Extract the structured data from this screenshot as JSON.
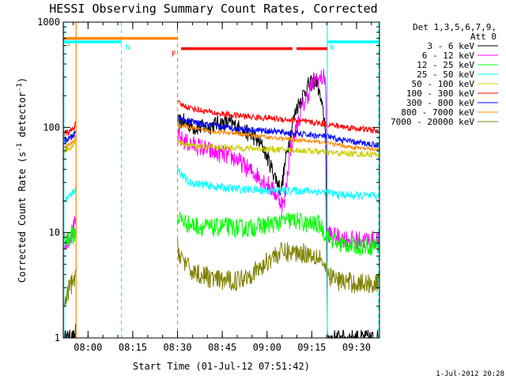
{
  "chart_data": {
    "type": "line",
    "title": "HESSI Observing Summary Count Rates, Corrected",
    "xlabel": "Start Time (01-Jul-12 07:51:42)",
    "ylabel": "Corrected Count Rate (s⁻¹ detector⁻¹)",
    "ylabel_parts": {
      "main": "Corrected Count Rate (s",
      "exp1": "-1",
      "mid": " detector",
      "exp2": "-1",
      "end": ")"
    },
    "yscale": "log",
    "ylim": [
      1,
      1000
    ],
    "xlim_minutes": [
      0,
      106
    ],
    "x_ticks": [
      {
        "label": "08:00",
        "minute": 8.3
      },
      {
        "label": "08:15",
        "minute": 23.3
      },
      {
        "label": "08:30",
        "minute": 38.3
      },
      {
        "label": "08:45",
        "minute": 53.3
      },
      {
        "label": "09:00",
        "minute": 68.3
      },
      {
        "label": "09:15",
        "minute": 83.3
      },
      {
        "label": "09:30",
        "minute": 98.3
      }
    ],
    "y_ticks": [
      {
        "label": "1",
        "value": 1
      },
      {
        "label": "10",
        "value": 10
      },
      {
        "label": "100",
        "value": 100
      },
      {
        "label": "1000",
        "value": 1000
      }
    ],
    "legend_header": [
      "Det 1,3,5,6,7,9,",
      "Att 0"
    ],
    "legend_position": "right",
    "flags": [
      {
        "label": "S",
        "color": "#ff8800",
        "y": 700,
        "start": 0,
        "end": 38.3
      },
      {
        "label": "N",
        "color": "#00ffff",
        "y": 650,
        "start": 0,
        "end": 19.5
      },
      {
        "label": "N",
        "color": "#00ffff",
        "y": 650,
        "start": 88.5,
        "end": 106
      },
      {
        "label": "F",
        "color": "#ff0000",
        "y": 560,
        "start": 39.5,
        "end": 88.5
      }
    ],
    "vlines": [
      {
        "minute": 0.2,
        "color": "#00ffff",
        "style": "solid"
      },
      {
        "minute": 4.3,
        "color": "#ff8800",
        "style": "solid"
      },
      {
        "minute": 19.5,
        "color": "#00ffff",
        "style": "dashed"
      },
      {
        "minute": 38.3,
        "color": "#ff8800",
        "style": "dashed"
      },
      {
        "minute": 88.5,
        "color": "#00ffff",
        "style": "solid"
      },
      {
        "minute": 106,
        "color": "#00ffff",
        "style": "dashed"
      }
    ],
    "data_gaps": [
      [
        4.3,
        38.3
      ]
    ],
    "series": [
      {
        "name": "3 - 6 keV",
        "color": "#000000",
        "noise": 0.08,
        "pre": [
          [
            0.5,
            1
          ],
          [
            3.6,
            1
          ],
          [
            4.2,
            1.2
          ]
        ],
        "points": [
          [
            38.3,
            110
          ],
          [
            40,
            115
          ],
          [
            44,
            100
          ],
          [
            48,
            100
          ],
          [
            52,
            110
          ],
          [
            56,
            110
          ],
          [
            60,
            95
          ],
          [
            64,
            80
          ],
          [
            67,
            65
          ],
          [
            70,
            40
          ],
          [
            73,
            25
          ],
          [
            75,
            60
          ],
          [
            78,
            150
          ],
          [
            82,
            250
          ],
          [
            85,
            280
          ],
          [
            88,
            100
          ],
          [
            88.5,
            1
          ],
          [
            106,
            1
          ]
        ]
      },
      {
        "name": "6 - 12 keV",
        "color": "#ff00ff",
        "noise": 0.09,
        "pre": [
          [
            0.5,
            8
          ],
          [
            2,
            9
          ],
          [
            3.6,
            11
          ],
          [
            4.2,
            13
          ]
        ],
        "points": [
          [
            38.3,
            80
          ],
          [
            42,
            70
          ],
          [
            46,
            65
          ],
          [
            50,
            58
          ],
          [
            54,
            55
          ],
          [
            58,
            50
          ],
          [
            62,
            40
          ],
          [
            65,
            35
          ],
          [
            68,
            30
          ],
          [
            71,
            24
          ],
          [
            74,
            18
          ],
          [
            76,
            60
          ],
          [
            80,
            150
          ],
          [
            84,
            280
          ],
          [
            88,
            300
          ],
          [
            88.5,
            10
          ],
          [
            92,
            9
          ],
          [
            98,
            8.5
          ],
          [
            106,
            8.5
          ]
        ]
      },
      {
        "name": "12 - 25 keV",
        "color": "#00ff00",
        "noise": 0.09,
        "pre": [
          [
            0.5,
            8
          ],
          [
            2,
            9
          ],
          [
            3.6,
            9.5
          ],
          [
            4.2,
            10
          ]
        ],
        "points": [
          [
            38.3,
            14
          ],
          [
            42,
            12
          ],
          [
            46,
            11.5
          ],
          [
            50,
            11
          ],
          [
            54,
            11.5
          ],
          [
            58,
            11
          ],
          [
            62,
            11
          ],
          [
            66,
            11.5
          ],
          [
            70,
            12
          ],
          [
            74,
            13
          ],
          [
            78,
            13
          ],
          [
            82,
            12
          ],
          [
            86,
            12
          ],
          [
            88.5,
            9
          ],
          [
            92,
            8
          ],
          [
            98,
            7.5
          ],
          [
            106,
            7.5
          ]
        ]
      },
      {
        "name": "25 - 50 keV",
        "color": "#00ffff",
        "noise": 0.04,
        "pre": [
          [
            0.5,
            20
          ],
          [
            2,
            22
          ],
          [
            3.6,
            25
          ],
          [
            4.2,
            27
          ]
        ],
        "points": [
          [
            38.3,
            40
          ],
          [
            42,
            30
          ],
          [
            46,
            29
          ],
          [
            52,
            27
          ],
          [
            58,
            26
          ],
          [
            64,
            25.5
          ],
          [
            70,
            25
          ],
          [
            76,
            25
          ],
          [
            82,
            25
          ],
          [
            88,
            24
          ],
          [
            92,
            23
          ],
          [
            98,
            22.5
          ],
          [
            106,
            22
          ]
        ]
      },
      {
        "name": "50 - 100 keV",
        "color": "#cccc00",
        "noise": 0.03,
        "pre": [
          [
            0.5,
            60
          ],
          [
            2,
            63
          ],
          [
            3.6,
            70
          ],
          [
            4.2,
            75
          ]
        ],
        "points": [
          [
            38.3,
            75
          ],
          [
            42,
            68
          ],
          [
            46,
            66
          ],
          [
            52,
            65
          ],
          [
            58,
            64
          ],
          [
            64,
            63
          ],
          [
            70,
            62
          ],
          [
            76,
            61
          ],
          [
            82,
            60
          ],
          [
            88,
            58
          ],
          [
            92,
            57
          ],
          [
            98,
            56
          ],
          [
            106,
            55
          ]
        ]
      },
      {
        "name": "100 - 300 keV",
        "color": "#ff0000",
        "noise": 0.03,
        "pre": [
          [
            0.5,
            88
          ],
          [
            2,
            90
          ],
          [
            3.6,
            100
          ],
          [
            4.2,
            110
          ]
        ],
        "points": [
          [
            38.3,
            170
          ],
          [
            42,
            155
          ],
          [
            46,
            145
          ],
          [
            52,
            135
          ],
          [
            58,
            130
          ],
          [
            64,
            125
          ],
          [
            70,
            122
          ],
          [
            76,
            118
          ],
          [
            82,
            112
          ],
          [
            88,
            108
          ],
          [
            92,
            103
          ],
          [
            98,
            98
          ],
          [
            106,
            92
          ]
        ]
      },
      {
        "name": "300 - 800 keV",
        "color": "#0000ff",
        "noise": 0.03,
        "pre": [
          [
            0.5,
            75
          ],
          [
            2,
            78
          ],
          [
            3.6,
            85
          ],
          [
            4.2,
            92
          ]
        ],
        "points": [
          [
            38.3,
            125
          ],
          [
            42,
            115
          ],
          [
            46,
            108
          ],
          [
            52,
            102
          ],
          [
            58,
            98
          ],
          [
            64,
            95
          ],
          [
            70,
            92
          ],
          [
            76,
            88
          ],
          [
            82,
            85
          ],
          [
            88,
            82
          ],
          [
            92,
            77
          ],
          [
            98,
            72
          ],
          [
            106,
            68
          ]
        ]
      },
      {
        "name": "800 - 7000 keV",
        "color": "#ff8800",
        "noise": 0.02,
        "pre": [
          [
            0.5,
            65
          ],
          [
            2,
            68
          ],
          [
            3.6,
            75
          ],
          [
            4.2,
            82
          ]
        ],
        "points": [
          [
            38.3,
            105
          ],
          [
            42,
            100
          ],
          [
            46,
            95
          ],
          [
            52,
            90
          ],
          [
            58,
            87
          ],
          [
            64,
            84
          ],
          [
            70,
            80
          ],
          [
            76,
            77
          ],
          [
            82,
            74
          ],
          [
            88,
            72
          ],
          [
            92,
            68
          ],
          [
            98,
            64
          ],
          [
            106,
            61
          ]
        ]
      },
      {
        "name": "7000 - 20000 keV",
        "color": "#808000",
        "noise": 0.1,
        "pre": [
          [
            0.5,
            2
          ],
          [
            2,
            3
          ],
          [
            3.6,
            3.5
          ],
          [
            4.2,
            4
          ]
        ],
        "points": [
          [
            38.3,
            7
          ],
          [
            42,
            4.5
          ],
          [
            46,
            4
          ],
          [
            52,
            3.5
          ],
          [
            58,
            3.5
          ],
          [
            62,
            4
          ],
          [
            66,
            4.5
          ],
          [
            70,
            6
          ],
          [
            74,
            6.5
          ],
          [
            80,
            6.5
          ],
          [
            86,
            6
          ],
          [
            88.5,
            4
          ],
          [
            92,
            3.5
          ],
          [
            98,
            3.3
          ],
          [
            106,
            3.3
          ]
        ]
      }
    ]
  },
  "timestamp": "1-Jul-2012 20:28"
}
